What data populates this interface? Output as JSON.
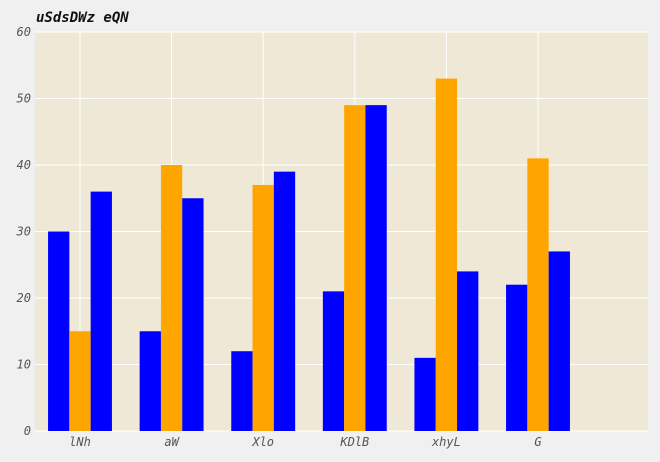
{
  "chart_data": {
    "type": "bar",
    "title": "uSdsDWz eQN",
    "categories": [
      "lNh",
      "aW",
      "Xlo",
      "KDlB",
      "xhyL",
      "G"
    ],
    "series": [
      {
        "color": "#0000ff",
        "values": [
          30,
          15,
          12,
          21,
          11,
          22
        ]
      },
      {
        "color": "#ffa500",
        "values": [
          15,
          40,
          37,
          49,
          53,
          41
        ]
      },
      {
        "color": "#0000ff",
        "values": [
          36,
          35,
          39,
          49,
          24,
          27
        ]
      }
    ],
    "xlabel": "",
    "ylabel": "",
    "ylim": [
      0,
      60
    ],
    "yticks": [
      0,
      10,
      20,
      30,
      40,
      50,
      60
    ],
    "grid": true,
    "legend": "none",
    "plot_background": "#efe8d6",
    "grid_color": "#ffffff",
    "tick_label_color": "#555555"
  }
}
